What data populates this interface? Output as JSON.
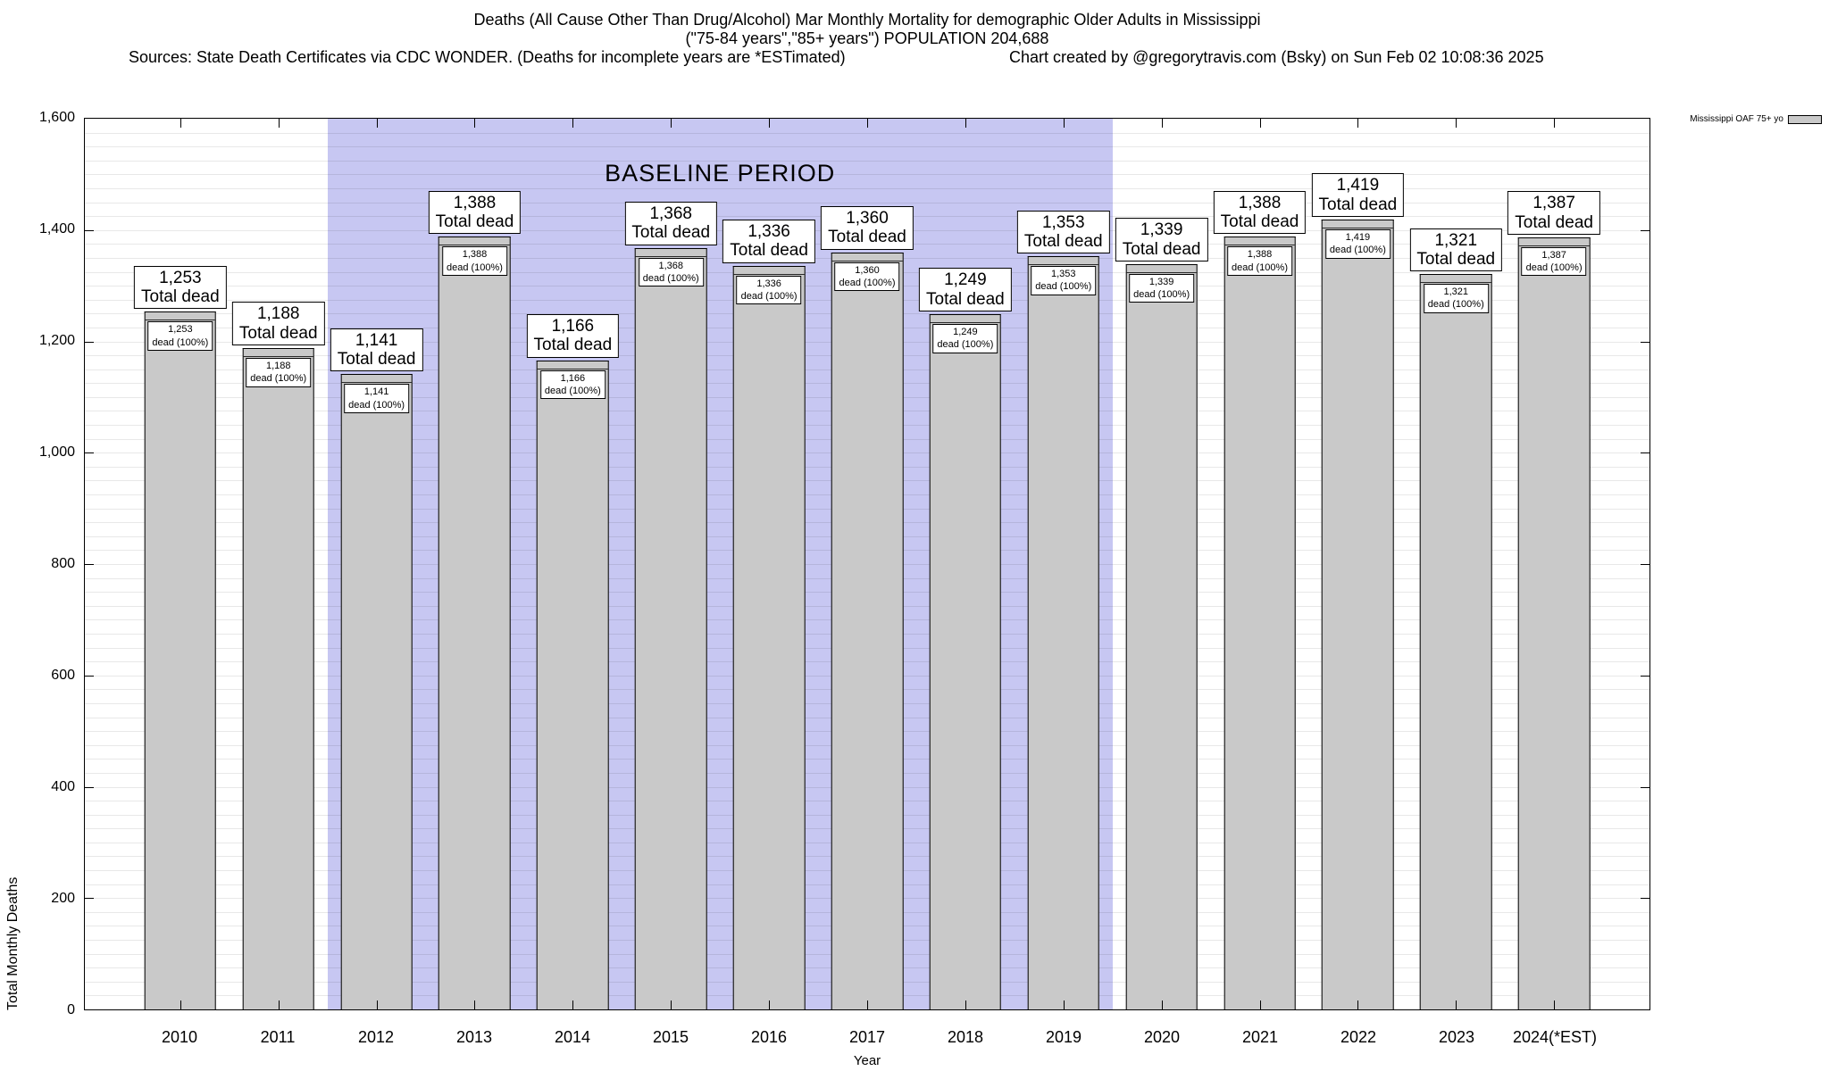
{
  "header": {
    "title_line1": "Deaths (All Cause Other Than Drug/Alcohol) Mar Monthly Mortality for demographic Older Adults in Mississippi",
    "title_line2": "(\"75-84 years\",\"85+ years\") POPULATION 204,688",
    "sources": "Sources: State Death Certificates via CDC WONDER. (Deaths for incomplete years are *ESTimated)",
    "credit": "Chart created by @gregorytravis.com (Bsky) on Sun Feb 02 10:08:36 2025"
  },
  "chart_data": {
    "type": "bar",
    "title": "Deaths (All Cause Other Than Drug/Alcohol) Mar Monthly Mortality for demographic Older Adults in Mississippi",
    "xlabel": "Year",
    "ylabel": "Total Monthly Deaths",
    "ylim": [
      0,
      1600
    ],
    "ytick_interval": 200,
    "minor_gridline_interval": 25,
    "grid": true,
    "legend_position": "top-right",
    "legend_label": "Mississippi OAF 75+ yo",
    "bar_color": "#c9c9c9",
    "baseline": {
      "label": "BASELINE PERIOD",
      "start_category": "2012",
      "end_category": "2019",
      "color": "#c7c7f2"
    },
    "categories": [
      "2010",
      "2011",
      "2012",
      "2013",
      "2014",
      "2015",
      "2016",
      "2017",
      "2018",
      "2019",
      "2020",
      "2021",
      "2022",
      "2023",
      "2024(*EST)"
    ],
    "values": [
      1253,
      1188,
      1141,
      1388,
      1166,
      1368,
      1336,
      1360,
      1249,
      1353,
      1339,
      1388,
      1419,
      1321,
      1387
    ],
    "bar_label_suffix": "Total dead",
    "bar_sublabel_suffix": "dead (100%)"
  }
}
